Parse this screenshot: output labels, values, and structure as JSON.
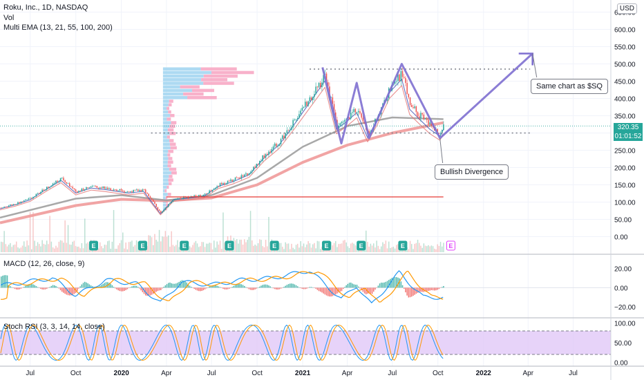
{
  "header": {
    "title": "Roku, Inc., 1D, NASDAQ",
    "vol_label": "Vol",
    "ema_label": "Multi EMA (13, 21, 55, 100, 200)",
    "macd_label": "MACD (12, 26, close, 9)",
    "stoch_label": "Stoch RSI (3, 3, 14, 14, close)"
  },
  "currency": "USD",
  "last_price": {
    "value": "320.35",
    "countdown": "01:01:52",
    "color": "#26a69a"
  },
  "annotations": {
    "callout_target": "Same chart as $SQ",
    "callout_divergence": "Bullish Divergence"
  },
  "colors": {
    "up": "#26a69a",
    "down": "#ef5350",
    "pattern": "#7e6fd0",
    "support": "#e53935",
    "stoch_band": "#e1c8f7",
    "macd": "#2196f3",
    "signal": "#ff9800"
  },
  "chart_data": {
    "type": "line",
    "title": "Roku, Inc., 1D, NASDAQ",
    "xlabel": "",
    "ylabel": "",
    "x_ticks": [
      "Jul",
      "Oct",
      "2020",
      "Apr",
      "Jul",
      "Oct",
      "2021",
      "Apr",
      "Jul",
      "Oct",
      "2022",
      "Apr",
      "Jul"
    ],
    "y_ticks": [
      0,
      50,
      100,
      150,
      200,
      250,
      300,
      350,
      400,
      450,
      500,
      550,
      600,
      650
    ],
    "ylim": [
      -15,
      665
    ],
    "price_path": [
      [
        "2019-05-01",
        83
      ],
      [
        "2019-06-01",
        95
      ],
      [
        "2019-07-01",
        110
      ],
      [
        "2019-08-01",
        140
      ],
      [
        "2019-09-01",
        168
      ],
      [
        "2019-10-01",
        130
      ],
      [
        "2019-11-01",
        145
      ],
      [
        "2019-12-01",
        140
      ],
      [
        "2020-01-15",
        130
      ],
      [
        "2020-02-15",
        135
      ],
      [
        "2020-03-20",
        68
      ],
      [
        "2020-04-15",
        110
      ],
      [
        "2020-05-15",
        115
      ],
      [
        "2020-06-15",
        120
      ],
      [
        "2020-07-15",
        150
      ],
      [
        "2020-08-15",
        165
      ],
      [
        "2020-09-15",
        185
      ],
      [
        "2020-10-15",
        235
      ],
      [
        "2020-11-15",
        275
      ],
      [
        "2020-12-15",
        335
      ],
      [
        "2021-01-15",
        400
      ],
      [
        "2021-02-15",
        465
      ],
      [
        "2021-03-10",
        320
      ],
      [
        "2021-04-01",
        345
      ],
      [
        "2021-04-20",
        370
      ],
      [
        "2021-05-12",
        295
      ],
      [
        "2021-06-01",
        350
      ],
      [
        "2021-06-25",
        430
      ],
      [
        "2021-07-20",
        470
      ],
      [
        "2021-08-05",
        380
      ],
      [
        "2021-08-25",
        350
      ],
      [
        "2021-09-15",
        320
      ],
      [
        "2021-10-05",
        300
      ],
      [
        "2021-10-12",
        320
      ]
    ],
    "ema_200_path": [
      [
        "2019-05-01",
        40
      ],
      [
        "2019-10-01",
        90
      ],
      [
        "2020-01-01",
        108
      ],
      [
        "2020-04-01",
        104
      ],
      [
        "2020-07-01",
        112
      ],
      [
        "2020-10-01",
        150
      ],
      [
        "2021-01-01",
        215
      ],
      [
        "2021-04-01",
        265
      ],
      [
        "2021-07-01",
        300
      ],
      [
        "2021-10-12",
        330
      ]
    ],
    "ema_100_path": [
      [
        "2019-05-01",
        55
      ],
      [
        "2019-10-01",
        110
      ],
      [
        "2020-01-01",
        120
      ],
      [
        "2020-04-01",
        105
      ],
      [
        "2020-07-01",
        120
      ],
      [
        "2020-10-01",
        170
      ],
      [
        "2021-01-01",
        260
      ],
      [
        "2021-04-01",
        320
      ],
      [
        "2021-07-01",
        345
      ],
      [
        "2021-10-12",
        340
      ]
    ],
    "pattern_path": [
      [
        "2021-02-10",
        490
      ],
      [
        "2021-03-20",
        270
      ],
      [
        "2021-04-20",
        445
      ],
      [
        "2021-05-15",
        285
      ],
      [
        "2021-07-20",
        500
      ],
      [
        "2021-10-05",
        285
      ],
      [
        "2022-04-10",
        530
      ]
    ],
    "resistance_level": 485,
    "support_level": 300,
    "key_support": 115,
    "volume_profile_price_range": [
      75,
      490
    ],
    "macd": {
      "y_ticks": [
        20,
        0,
        -20
      ],
      "ylim": [
        -30,
        32
      ],
      "path": [
        [
          "2019-05-01",
          2
        ],
        [
          "2019-08-15",
          10
        ],
        [
          "2019-10-01",
          -8
        ],
        [
          "2019-12-01",
          8
        ],
        [
          "2020-02-01",
          4
        ],
        [
          "2020-03-20",
          -16
        ],
        [
          "2020-05-01",
          6
        ],
        [
          "2020-07-01",
          3
        ],
        [
          "2020-09-01",
          8
        ],
        [
          "2020-11-01",
          10
        ],
        [
          "2021-01-15",
          18
        ],
        [
          "2021-03-20",
          -12
        ],
        [
          "2021-04-20",
          2
        ],
        [
          "2021-05-20",
          -18
        ],
        [
          "2021-07-15",
          16
        ],
        [
          "2021-09-01",
          -10
        ],
        [
          "2021-10-12",
          -10
        ]
      ]
    },
    "stoch_rsi": {
      "y_ticks": [
        100,
        50,
        0
      ],
      "band": [
        20,
        80
      ],
      "ylim": [
        -10,
        110
      ]
    }
  }
}
